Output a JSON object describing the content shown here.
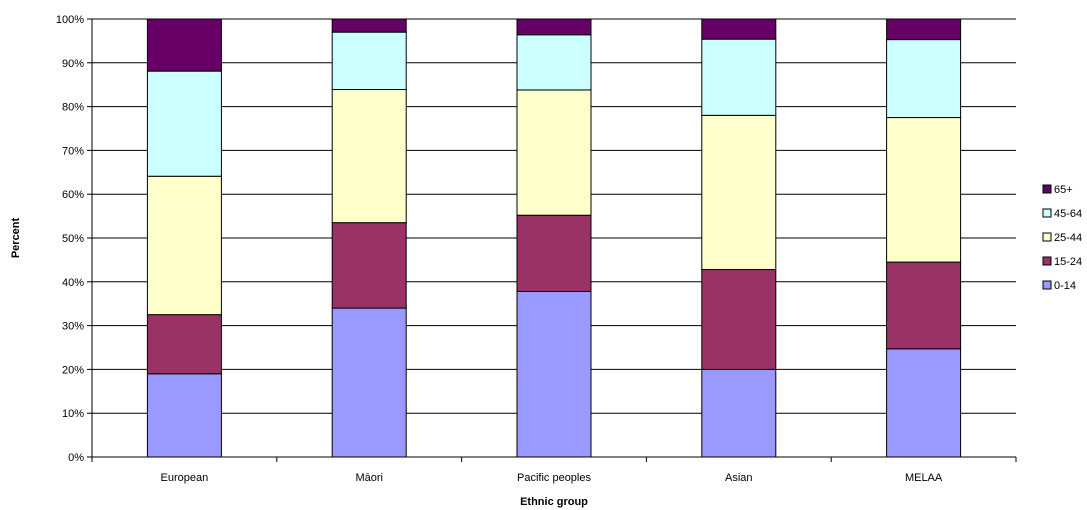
{
  "chart_data": {
    "type": "bar",
    "stacked": "percent",
    "title": "",
    "xlabel": "Ethnic group",
    "ylabel": "Percent",
    "ylim": [
      0,
      100
    ],
    "y_ticks": [
      "0%",
      "10%",
      "20%",
      "30%",
      "40%",
      "50%",
      "60%",
      "70%",
      "80%",
      "90%",
      "100%"
    ],
    "grid": true,
    "legend_position": "right",
    "categories": [
      "European",
      "Māori",
      "Pacific peoples",
      "Asian",
      "MELAA"
    ],
    "series": [
      {
        "name": "0-14",
        "color": "#9999ff",
        "values": [
          19,
          34,
          37.8,
          20,
          24.7
        ]
      },
      {
        "name": "15-24",
        "color": "#993366",
        "values": [
          13.5,
          19.5,
          17.4,
          22.8,
          19.8
        ]
      },
      {
        "name": "25-44",
        "color": "#ffffcc",
        "values": [
          31.6,
          30.4,
          28.6,
          35.2,
          33
        ]
      },
      {
        "name": "45-64",
        "color": "#ccffff",
        "values": [
          24,
          13.1,
          12.6,
          17.4,
          17.8
        ]
      },
      {
        "name": "65+",
        "color": "#660066",
        "values": [
          11.9,
          3,
          3.6,
          4.6,
          4.7
        ]
      }
    ],
    "legend_order": [
      "65+",
      "45-64",
      "25-44",
      "15-24",
      "0-14"
    ]
  }
}
